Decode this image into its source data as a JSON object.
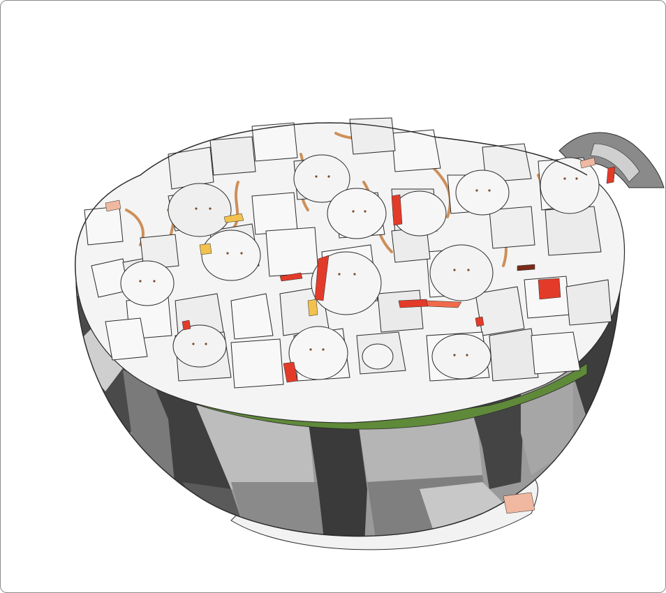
{
  "image": {
    "subject": "bowl-of-cubed-food",
    "palette": {
      "background": "#ffffff",
      "outline": "#2a2a2a",
      "bowl_dark": "#3d3d3d",
      "bowl_mid": "#8c8c8c",
      "bowl_light": "#b9b9b9",
      "cube_white": "#f7f7f7",
      "cube_shadow": "#e2e2e2",
      "accent_orange": "#d9863a",
      "accent_red": "#e23b2a",
      "accent_yellow": "#f2c14e",
      "accent_green": "#5f8a3a",
      "accent_pink": "#f0b8a0"
    }
  }
}
